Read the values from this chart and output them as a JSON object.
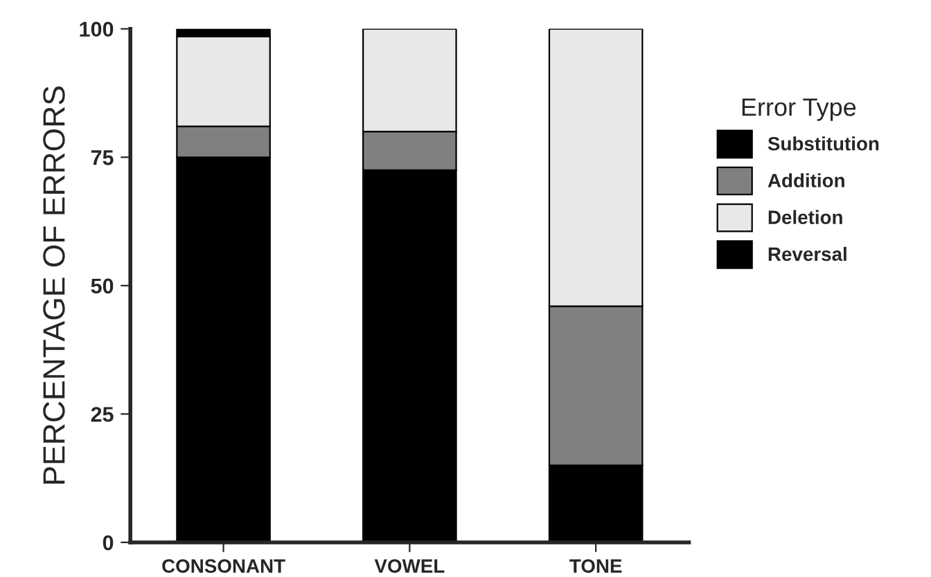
{
  "chart_data": {
    "type": "bar",
    "stacked": true,
    "ylabel": "PERCENTAGE OF ERRORS",
    "legend_title": "Error Type",
    "legend": "right",
    "categories": [
      "CONSONANT",
      "VOWEL",
      "TONE"
    ],
    "series": [
      {
        "name": "Substitution",
        "color": "#000000",
        "values": [
          75,
          72.5,
          15
        ]
      },
      {
        "name": "Addition",
        "color": "#808080",
        "values": [
          6,
          7.5,
          31
        ]
      },
      {
        "name": "Deletion",
        "color": "#e8e8e8",
        "values": [
          17.5,
          20,
          54
        ]
      },
      {
        "name": "Reversal",
        "color": "#000000",
        "values": [
          1.5,
          0,
          0
        ]
      }
    ],
    "ylim": [
      0,
      100
    ],
    "yticks": [
      0,
      25,
      50,
      75,
      100
    ],
    "grid": false
  }
}
